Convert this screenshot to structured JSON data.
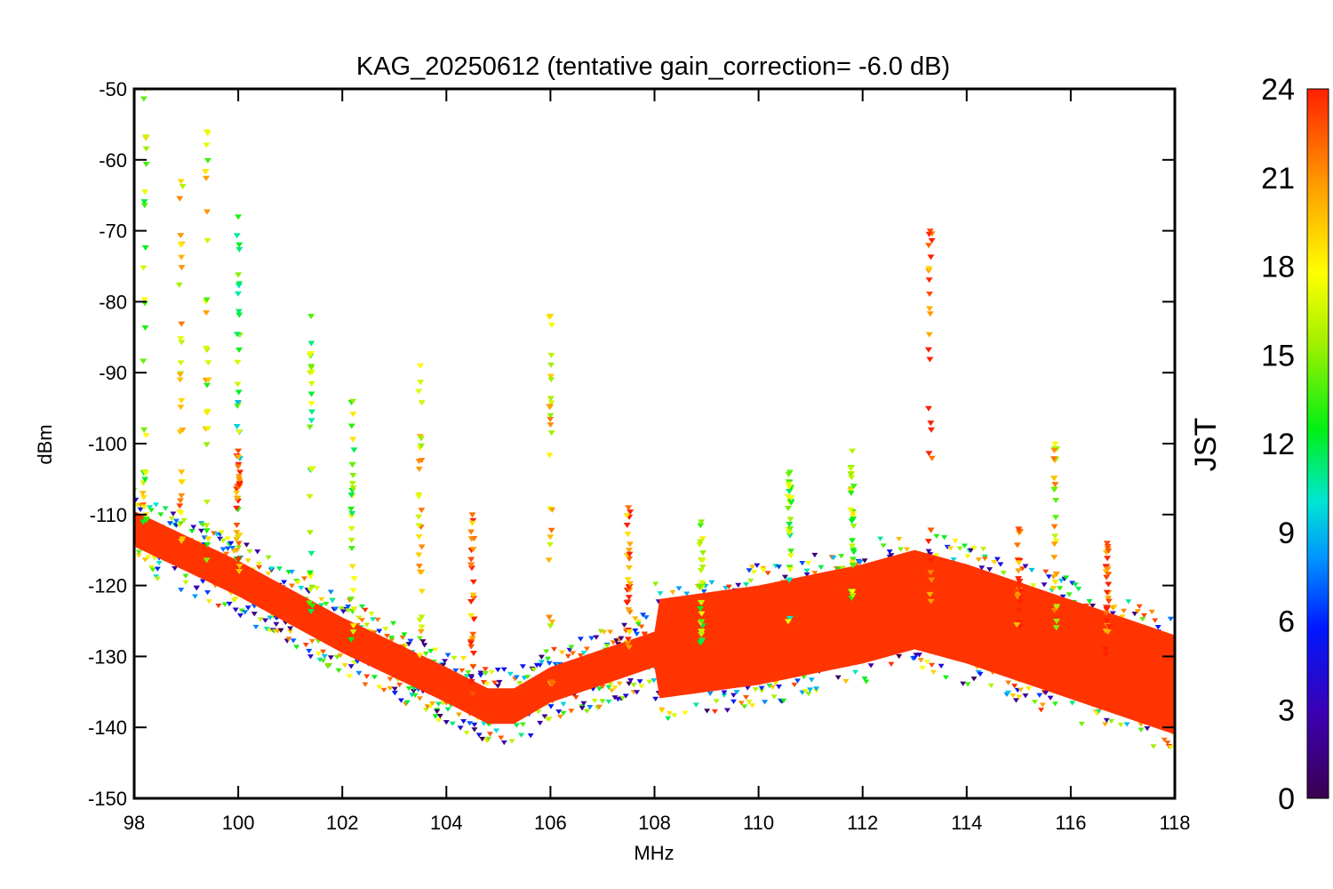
{
  "chart_data": {
    "type": "scatter",
    "title": "KAG_20250612 (tentative gain_correction= -6.0 dB)",
    "xlabel": "MHz",
    "ylabel": "dBm",
    "xlim": [
      98,
      118
    ],
    "ylim": [
      -150,
      -50
    ],
    "x_ticks": [
      "98",
      "100",
      "102",
      "104",
      "106",
      "108",
      "110",
      "112",
      "114",
      "116",
      "118"
    ],
    "y_ticks": [
      "-50",
      "-60",
      "-70",
      "-80",
      "-90",
      "-100",
      "-110",
      "-120",
      "-130",
      "-140",
      "-150"
    ],
    "grid": false,
    "marker": "triangle-down",
    "colorbar": {
      "label": "JST",
      "range": [
        0,
        24
      ],
      "ticks": [
        "24",
        "21",
        "18",
        "15",
        "12",
        "9",
        "6",
        "3",
        "0"
      ],
      "colormap": "rainbow"
    },
    "noise_floor": [
      {
        "x": 98,
        "y": -112
      },
      {
        "x": 100,
        "y": -119
      },
      {
        "x": 102,
        "y": -127
      },
      {
        "x": 104,
        "y": -134
      },
      {
        "x": 104.8,
        "y": -137
      },
      {
        "x": 105.3,
        "y": -137
      },
      {
        "x": 106,
        "y": -134
      },
      {
        "x": 108,
        "y": -129
      },
      {
        "x": 110,
        "y": -127
      },
      {
        "x": 112,
        "y": -124
      },
      {
        "x": 113,
        "y": -122
      },
      {
        "x": 114,
        "y": -124
      },
      {
        "x": 116,
        "y": -129
      },
      {
        "x": 118,
        "y": -134
      }
    ],
    "signals": [
      {
        "x": 98.2,
        "y_top": -50,
        "hour": 16
      },
      {
        "x": 98.9,
        "y_top": -63,
        "hour": 19
      },
      {
        "x": 99.4,
        "y_top": -56,
        "hour": 17
      },
      {
        "x": 100.0,
        "y_top": -68,
        "hour": 13
      },
      {
        "x": 100.0,
        "y_top": -101,
        "hour": 23
      },
      {
        "x": 101.4,
        "y_top": -82,
        "hour": 14
      },
      {
        "x": 102.2,
        "y_top": -94,
        "hour": 15
      },
      {
        "x": 103.5,
        "y_top": -89,
        "hour": 18
      },
      {
        "x": 104.5,
        "y_top": -110,
        "hour": 22
      },
      {
        "x": 106.0,
        "y_top": -82,
        "hour": 19
      },
      {
        "x": 107.5,
        "y_top": -109,
        "hour": 22
      },
      {
        "x": 108.9,
        "y_top": -111,
        "hour": 15
      },
      {
        "x": 110.6,
        "y_top": -104,
        "hour": 14
      },
      {
        "x": 111.8,
        "y_top": -101,
        "hour": 16
      },
      {
        "x": 113.3,
        "y_top": -70,
        "hour": 23
      },
      {
        "x": 115.0,
        "y_top": -112,
        "hour": 23
      },
      {
        "x": 115.7,
        "y_top": -100,
        "hour": 18
      },
      {
        "x": 116.7,
        "y_top": -114,
        "hour": 23
      }
    ]
  }
}
